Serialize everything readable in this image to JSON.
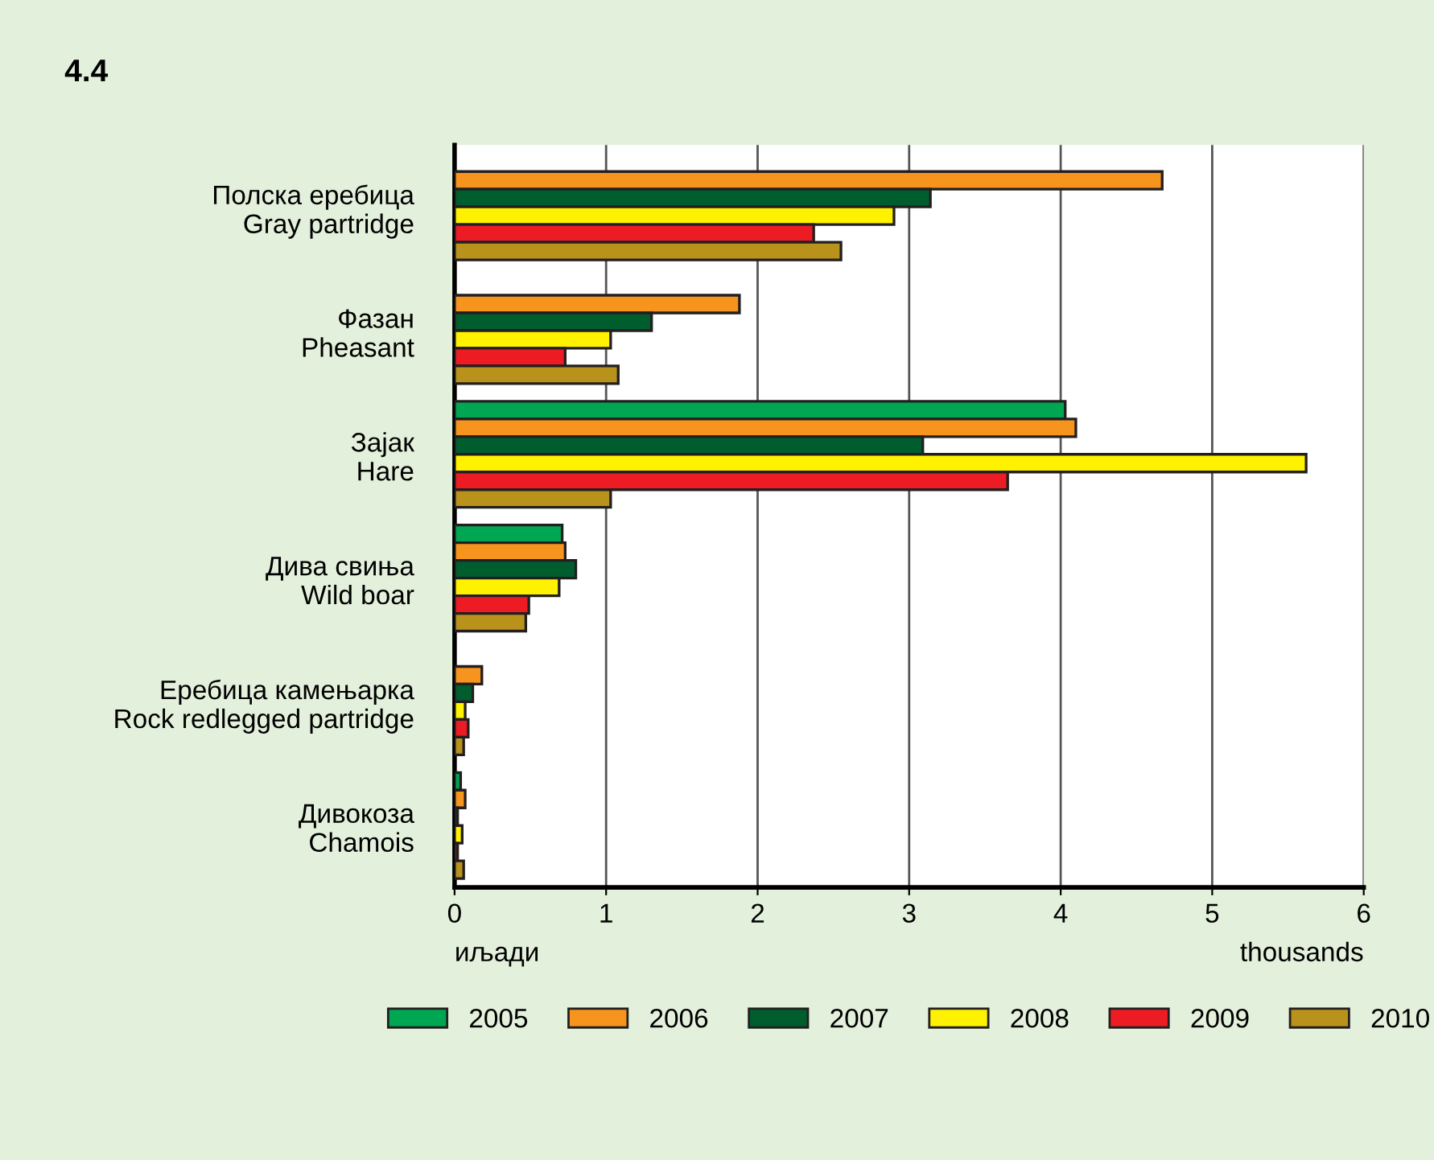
{
  "chart_data": {
    "type": "bar",
    "orientation": "horizontal",
    "title": "4.4",
    "xlabel": "иљади",
    "annotations": [
      "thousands"
    ],
    "categories": [
      "Полска еребица\nGray partridge",
      "Фазан\nPheasant",
      "Зајак\nHare",
      "Дива свиња\nWild boar",
      "Еребица камењарка\nRock redlegged partridge",
      "Дивокоза\nChamois"
    ],
    "series": [
      {
        "name": "2005",
        "color": "#00a651",
        "values": [
          null,
          null,
          4.03,
          0.71,
          null,
          0.04
        ]
      },
      {
        "name": "2006",
        "color": "#f7941d",
        "values": [
          4.67,
          1.88,
          4.1,
          0.73,
          0.18,
          0.07
        ]
      },
      {
        "name": "2007",
        "color": "#005e2e",
        "values": [
          3.14,
          1.3,
          3.09,
          0.8,
          0.12,
          0.02
        ]
      },
      {
        "name": "2008",
        "color": "#fff200",
        "values": [
          2.9,
          1.03,
          5.62,
          0.69,
          0.07,
          0.05
        ]
      },
      {
        "name": "2009",
        "color": "#ed1c24",
        "values": [
          2.37,
          0.73,
          3.65,
          0.49,
          0.09,
          0.02
        ]
      },
      {
        "name": "2010",
        "color": "#b8921b",
        "values": [
          2.55,
          1.08,
          1.03,
          0.47,
          0.06,
          0.06
        ]
      }
    ],
    "xlim": [
      0,
      6
    ],
    "xticks": [
      0,
      1,
      2,
      3,
      4,
      5,
      6
    ],
    "grid": "x",
    "legend": "bottom"
  }
}
